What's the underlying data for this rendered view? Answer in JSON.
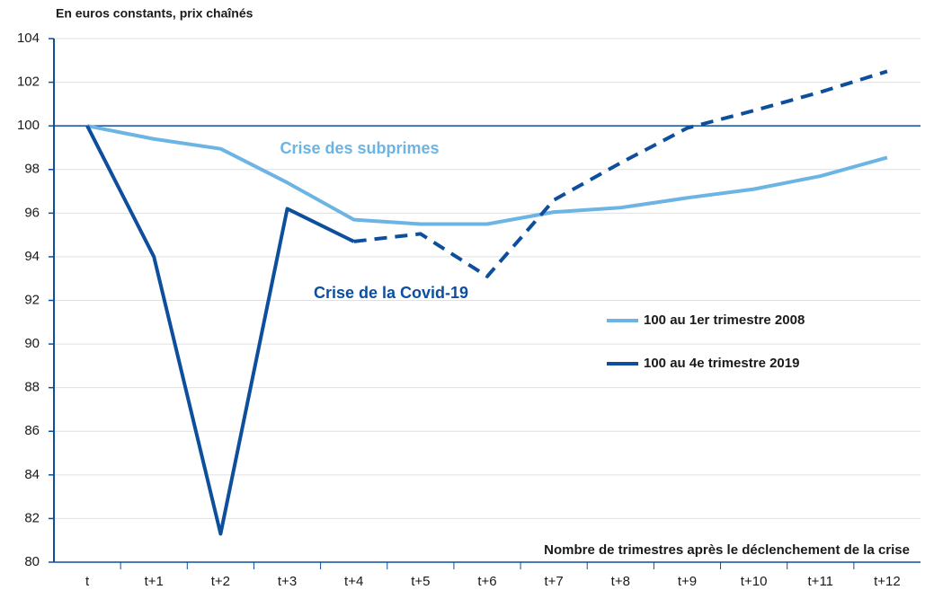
{
  "chart_data": {
    "type": "line",
    "y_label": "En euros constants, prix chaînés",
    "x_label": "Nombre de trimestres après le déclenchement de la crise",
    "categories": [
      "t",
      "t+1",
      "t+2",
      "t+3",
      "t+4",
      "t+5",
      "t+6",
      "t+7",
      "t+8",
      "t+9",
      "t+10",
      "t+11",
      "t+12"
    ],
    "series": [
      {
        "name": "100 au 1er trimestre 2008",
        "color": "#6cb4e4",
        "values": [
          100,
          99.4,
          98.95,
          97.4,
          95.7,
          95.5,
          95.5,
          96.05,
          96.25,
          96.7,
          97.1,
          97.7,
          98.55
        ]
      },
      {
        "name": "100 au 4e trimestre 2019",
        "color": "#0d4f9c",
        "dashed_from": 4,
        "values": [
          100,
          94,
          81.3,
          96.2,
          94.7,
          95.05,
          93.1,
          96.6,
          98.3,
          99.9,
          100.7,
          101.55,
          102.5
        ]
      }
    ],
    "annotations": [
      {
        "text": "Crise des subprimes",
        "color": "#6cb4e4"
      },
      {
        "text": "Crise de la Covid-19",
        "color": "#0d4f9c"
      }
    ],
    "reference_line": 100,
    "ylim": [
      80,
      104
    ],
    "yticks": [
      80,
      82,
      84,
      86,
      88,
      90,
      92,
      94,
      96,
      98,
      100,
      102,
      104
    ],
    "grid": true
  }
}
